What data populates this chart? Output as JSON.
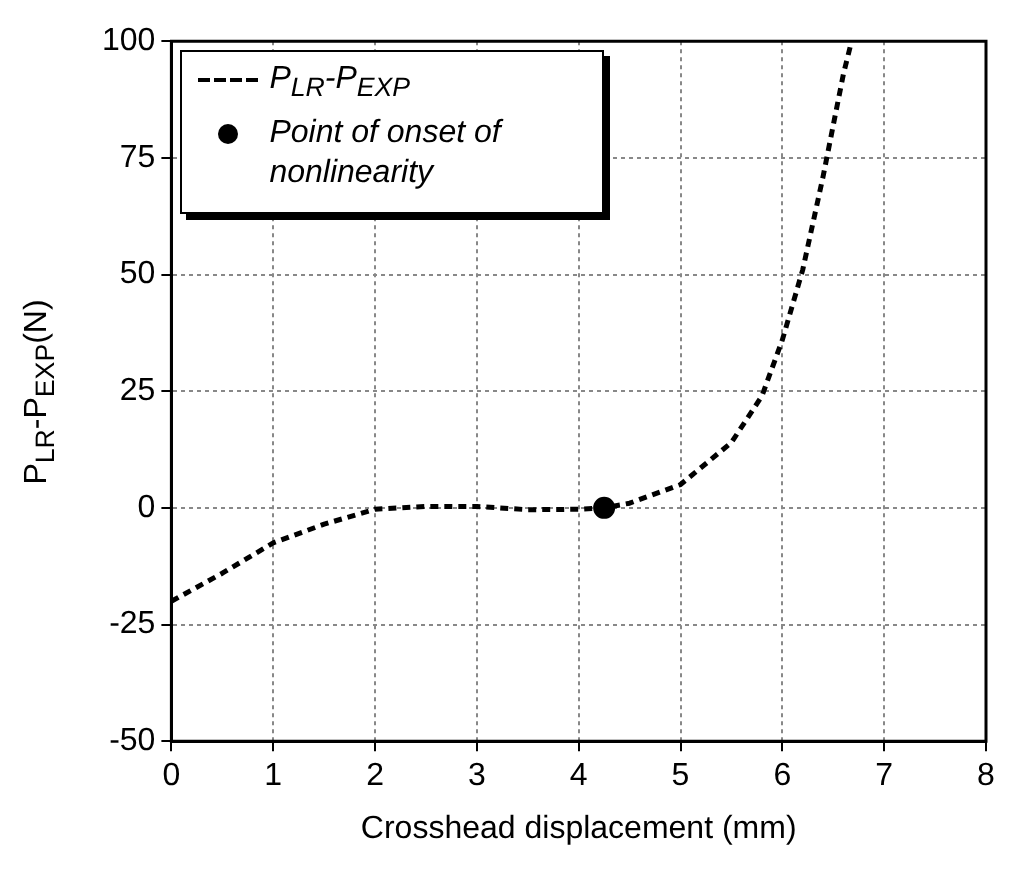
{
  "chart_data": {
    "type": "line",
    "xlabel": "Crosshead displacement (mm)",
    "ylabel": "P$_{LR}$-P$_{EXP}$(N)",
    "xlim": [
      0,
      8
    ],
    "xticks": [
      0,
      1,
      2,
      3,
      4,
      5,
      6,
      7,
      8
    ],
    "ylim": [
      -50,
      100
    ],
    "yticks": [
      -50,
      -25,
      0,
      25,
      50,
      75,
      100
    ],
    "grid": true,
    "legend": "top left",
    "series": [
      {
        "name": "P$_{LR}$-P$_{EXP}$",
        "color": "#000000",
        "marker": "none",
        "line_style": "dashed",
        "x": [
          0,
          0.5,
          1,
          1.5,
          2,
          2.5,
          3,
          3.5,
          4,
          4.25,
          4.5,
          5,
          5.5,
          5.8,
          6,
          6.2,
          6.4,
          6.6,
          6.68
        ],
        "values": [
          -20,
          -14,
          -7.5,
          -3.5,
          -0.3,
          0.3,
          0.3,
          -0.4,
          -0.3,
          0,
          1,
          5,
          14,
          24,
          36,
          51,
          71,
          93,
          100
        ]
      },
      {
        "name": "Point of onset of nonlinearity",
        "type": "scatter",
        "color": "#000000",
        "marker": "circle",
        "x": [
          4.25
        ],
        "values": [
          0
        ]
      }
    ]
  }
}
